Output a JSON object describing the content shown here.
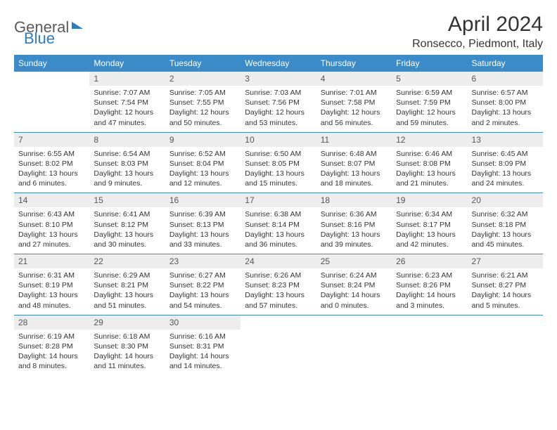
{
  "brand": {
    "part1": "General",
    "part2": "Blue"
  },
  "title": "April 2024",
  "location": "Ronsecco, Piedmont, Italy",
  "colors": {
    "header_bg": "#3b8bc8",
    "header_text": "#ffffff",
    "daynum_bg": "#ededed",
    "border": "#3b8bc8",
    "body_text": "#333333"
  },
  "weekdays": [
    "Sunday",
    "Monday",
    "Tuesday",
    "Wednesday",
    "Thursday",
    "Friday",
    "Saturday"
  ],
  "weeks": [
    [
      {
        "n": "",
        "sr": "",
        "ss": "",
        "dl": ""
      },
      {
        "n": "1",
        "sr": "Sunrise: 7:07 AM",
        "ss": "Sunset: 7:54 PM",
        "dl": "Daylight: 12 hours and 47 minutes."
      },
      {
        "n": "2",
        "sr": "Sunrise: 7:05 AM",
        "ss": "Sunset: 7:55 PM",
        "dl": "Daylight: 12 hours and 50 minutes."
      },
      {
        "n": "3",
        "sr": "Sunrise: 7:03 AM",
        "ss": "Sunset: 7:56 PM",
        "dl": "Daylight: 12 hours and 53 minutes."
      },
      {
        "n": "4",
        "sr": "Sunrise: 7:01 AM",
        "ss": "Sunset: 7:58 PM",
        "dl": "Daylight: 12 hours and 56 minutes."
      },
      {
        "n": "5",
        "sr": "Sunrise: 6:59 AM",
        "ss": "Sunset: 7:59 PM",
        "dl": "Daylight: 12 hours and 59 minutes."
      },
      {
        "n": "6",
        "sr": "Sunrise: 6:57 AM",
        "ss": "Sunset: 8:00 PM",
        "dl": "Daylight: 13 hours and 2 minutes."
      }
    ],
    [
      {
        "n": "7",
        "sr": "Sunrise: 6:55 AM",
        "ss": "Sunset: 8:02 PM",
        "dl": "Daylight: 13 hours and 6 minutes."
      },
      {
        "n": "8",
        "sr": "Sunrise: 6:54 AM",
        "ss": "Sunset: 8:03 PM",
        "dl": "Daylight: 13 hours and 9 minutes."
      },
      {
        "n": "9",
        "sr": "Sunrise: 6:52 AM",
        "ss": "Sunset: 8:04 PM",
        "dl": "Daylight: 13 hours and 12 minutes."
      },
      {
        "n": "10",
        "sr": "Sunrise: 6:50 AM",
        "ss": "Sunset: 8:05 PM",
        "dl": "Daylight: 13 hours and 15 minutes."
      },
      {
        "n": "11",
        "sr": "Sunrise: 6:48 AM",
        "ss": "Sunset: 8:07 PM",
        "dl": "Daylight: 13 hours and 18 minutes."
      },
      {
        "n": "12",
        "sr": "Sunrise: 6:46 AM",
        "ss": "Sunset: 8:08 PM",
        "dl": "Daylight: 13 hours and 21 minutes."
      },
      {
        "n": "13",
        "sr": "Sunrise: 6:45 AM",
        "ss": "Sunset: 8:09 PM",
        "dl": "Daylight: 13 hours and 24 minutes."
      }
    ],
    [
      {
        "n": "14",
        "sr": "Sunrise: 6:43 AM",
        "ss": "Sunset: 8:10 PM",
        "dl": "Daylight: 13 hours and 27 minutes."
      },
      {
        "n": "15",
        "sr": "Sunrise: 6:41 AM",
        "ss": "Sunset: 8:12 PM",
        "dl": "Daylight: 13 hours and 30 minutes."
      },
      {
        "n": "16",
        "sr": "Sunrise: 6:39 AM",
        "ss": "Sunset: 8:13 PM",
        "dl": "Daylight: 13 hours and 33 minutes."
      },
      {
        "n": "17",
        "sr": "Sunrise: 6:38 AM",
        "ss": "Sunset: 8:14 PM",
        "dl": "Daylight: 13 hours and 36 minutes."
      },
      {
        "n": "18",
        "sr": "Sunrise: 6:36 AM",
        "ss": "Sunset: 8:16 PM",
        "dl": "Daylight: 13 hours and 39 minutes."
      },
      {
        "n": "19",
        "sr": "Sunrise: 6:34 AM",
        "ss": "Sunset: 8:17 PM",
        "dl": "Daylight: 13 hours and 42 minutes."
      },
      {
        "n": "20",
        "sr": "Sunrise: 6:32 AM",
        "ss": "Sunset: 8:18 PM",
        "dl": "Daylight: 13 hours and 45 minutes."
      }
    ],
    [
      {
        "n": "21",
        "sr": "Sunrise: 6:31 AM",
        "ss": "Sunset: 8:19 PM",
        "dl": "Daylight: 13 hours and 48 minutes."
      },
      {
        "n": "22",
        "sr": "Sunrise: 6:29 AM",
        "ss": "Sunset: 8:21 PM",
        "dl": "Daylight: 13 hours and 51 minutes."
      },
      {
        "n": "23",
        "sr": "Sunrise: 6:27 AM",
        "ss": "Sunset: 8:22 PM",
        "dl": "Daylight: 13 hours and 54 minutes."
      },
      {
        "n": "24",
        "sr": "Sunrise: 6:26 AM",
        "ss": "Sunset: 8:23 PM",
        "dl": "Daylight: 13 hours and 57 minutes."
      },
      {
        "n": "25",
        "sr": "Sunrise: 6:24 AM",
        "ss": "Sunset: 8:24 PM",
        "dl": "Daylight: 14 hours and 0 minutes."
      },
      {
        "n": "26",
        "sr": "Sunrise: 6:23 AM",
        "ss": "Sunset: 8:26 PM",
        "dl": "Daylight: 14 hours and 3 minutes."
      },
      {
        "n": "27",
        "sr": "Sunrise: 6:21 AM",
        "ss": "Sunset: 8:27 PM",
        "dl": "Daylight: 14 hours and 5 minutes."
      }
    ],
    [
      {
        "n": "28",
        "sr": "Sunrise: 6:19 AM",
        "ss": "Sunset: 8:28 PM",
        "dl": "Daylight: 14 hours and 8 minutes."
      },
      {
        "n": "29",
        "sr": "Sunrise: 6:18 AM",
        "ss": "Sunset: 8:30 PM",
        "dl": "Daylight: 14 hours and 11 minutes."
      },
      {
        "n": "30",
        "sr": "Sunrise: 6:16 AM",
        "ss": "Sunset: 8:31 PM",
        "dl": "Daylight: 14 hours and 14 minutes."
      },
      {
        "n": "",
        "sr": "",
        "ss": "",
        "dl": ""
      },
      {
        "n": "",
        "sr": "",
        "ss": "",
        "dl": ""
      },
      {
        "n": "",
        "sr": "",
        "ss": "",
        "dl": ""
      },
      {
        "n": "",
        "sr": "",
        "ss": "",
        "dl": ""
      }
    ]
  ]
}
